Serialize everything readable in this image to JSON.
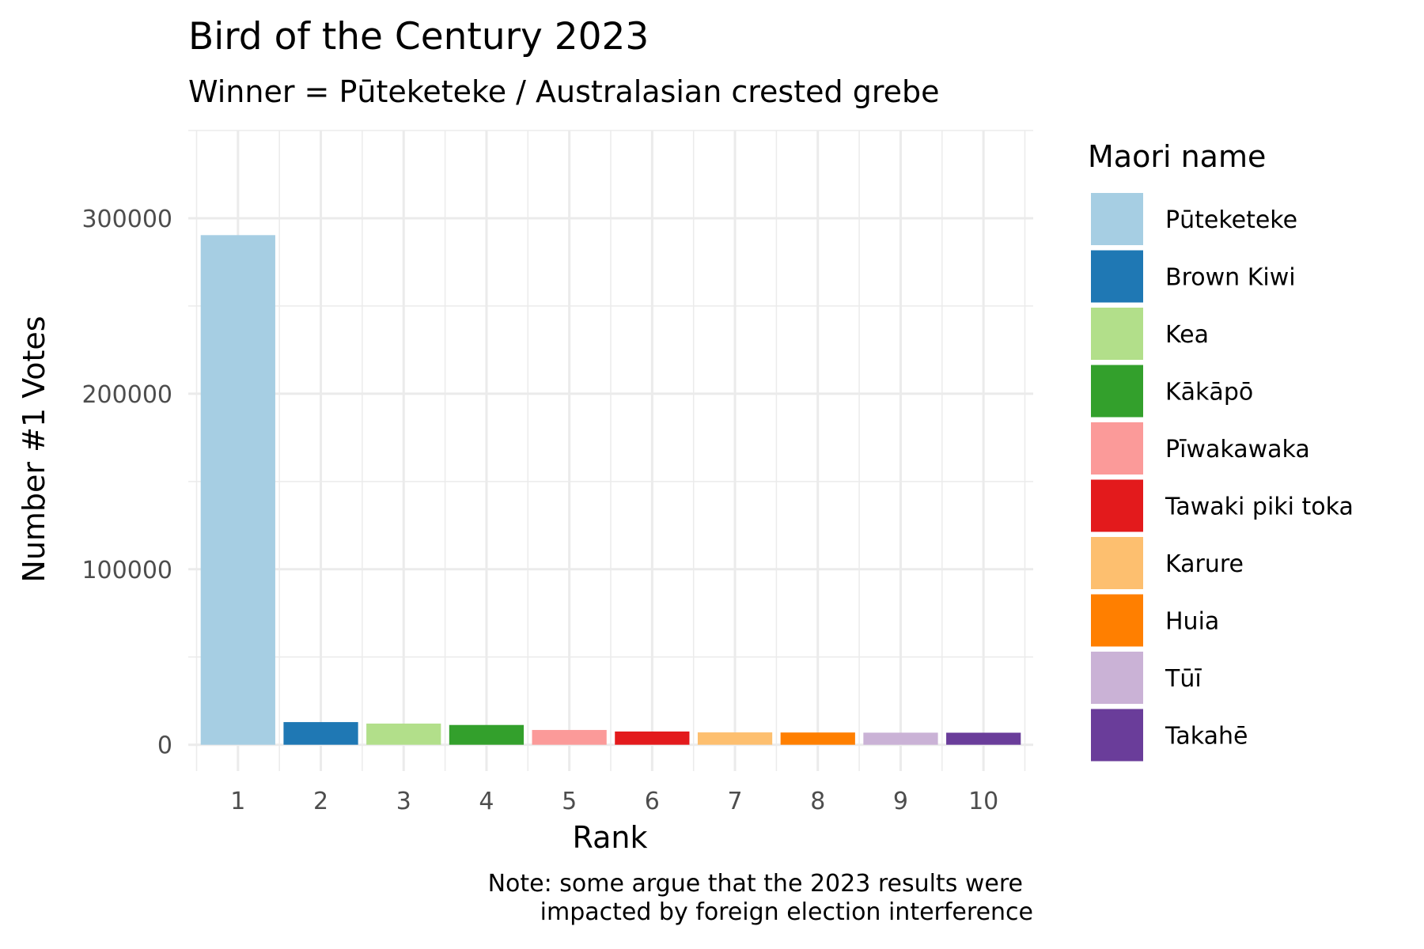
{
  "chart_data": {
    "type": "bar",
    "title": "Bird of the Century 2023",
    "subtitle": "Winner = Pūteketeke / Australasian crested grebe",
    "xlabel": "Rank",
    "ylabel": "Number #1 Votes",
    "caption": [
      "Note: some argue that the 2023 results were",
      "impacted by foreign election interference"
    ],
    "categories": [
      "1",
      "2",
      "3",
      "4",
      "5",
      "6",
      "7",
      "8",
      "9",
      "10"
    ],
    "values": [
      290374,
      12904,
      12060,
      11262,
      8412,
      7532,
      7040,
      6974,
      6885,
      6859
    ],
    "names": [
      "Pūteketeke",
      "Brown Kiwi",
      "Kea",
      "Kākāpō",
      "Pīwakawaka",
      "Tawaki piki toka",
      "Karure",
      "Huia",
      "Tūī",
      "Takahē"
    ],
    "colors": [
      "#A6CEE3",
      "#1F78B4",
      "#B2DF8A",
      "#33A02C",
      "#FB9A99",
      "#E31A1C",
      "#FDBF6F",
      "#FF7F00",
      "#CAB2D6",
      "#6A3D9A"
    ],
    "yticks": [
      0,
      100000,
      200000,
      300000
    ],
    "ylim": [
      -15000,
      350000
    ],
    "legend": {
      "title": "Maori name",
      "position": "right"
    },
    "grid": true
  }
}
